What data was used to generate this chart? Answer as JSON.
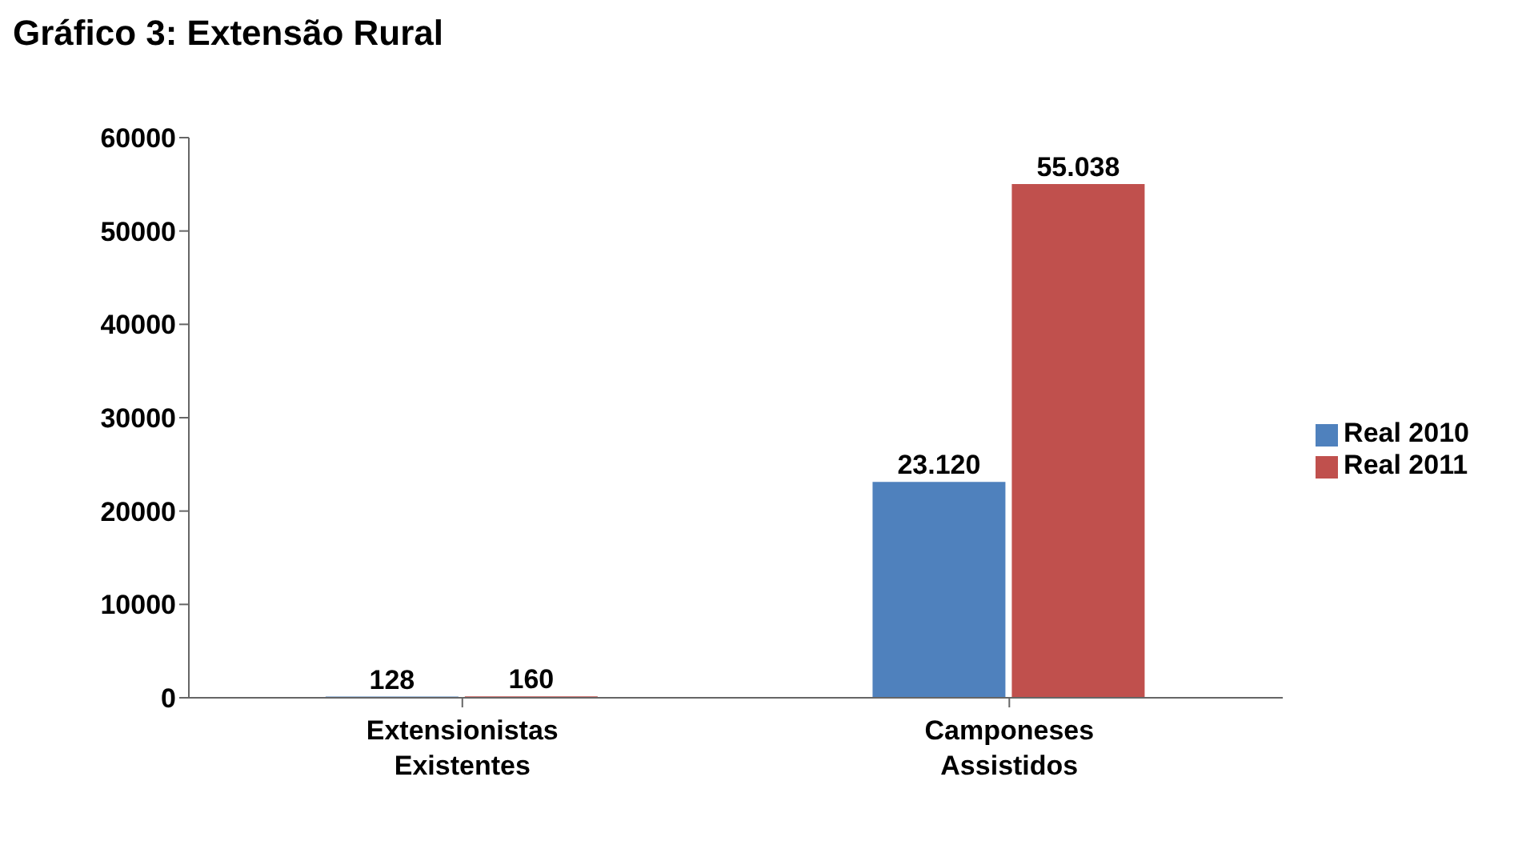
{
  "chart_data": {
    "type": "bar",
    "title": "Gráfico 3: Extensão Rural",
    "categories": [
      "Extensionistas Existentes",
      "Camponeses Assistidos"
    ],
    "series": [
      {
        "name": "Real 2010",
        "color": "#4f81bd",
        "values": [
          128,
          23120
        ],
        "value_labels": [
          "128",
          "23.120"
        ]
      },
      {
        "name": "Real 2011",
        "color": "#c0504d",
        "values": [
          160,
          55038
        ],
        "value_labels": [
          "160",
          "55.038"
        ]
      }
    ],
    "ylim": [
      0,
      60000
    ],
    "yticks": [
      0,
      10000,
      20000,
      30000,
      40000,
      50000,
      60000
    ],
    "grid": false,
    "legend": "right"
  }
}
